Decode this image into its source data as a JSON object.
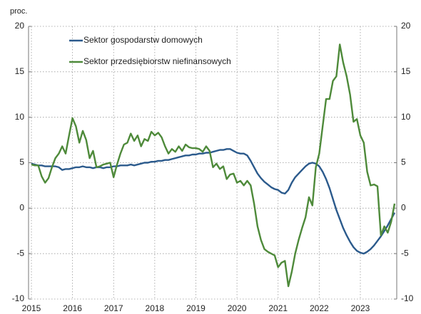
{
  "chart_data": {
    "type": "line",
    "ylabel": "proc.",
    "categories": [
      "2015",
      null,
      null,
      null,
      null,
      null,
      null,
      null,
      null,
      null,
      null,
      null,
      "2016",
      null,
      null,
      null,
      null,
      null,
      null,
      null,
      null,
      null,
      null,
      null,
      "2017",
      null,
      null,
      null,
      null,
      null,
      null,
      null,
      null,
      null,
      null,
      null,
      "2018",
      null,
      null,
      null,
      null,
      null,
      null,
      null,
      null,
      null,
      null,
      null,
      "2019",
      null,
      null,
      null,
      null,
      null,
      null,
      null,
      null,
      null,
      null,
      null,
      "2020",
      null,
      null,
      null,
      null,
      null,
      null,
      null,
      null,
      null,
      null,
      null,
      "2021",
      null,
      null,
      null,
      null,
      null,
      null,
      null,
      null,
      null,
      null,
      null,
      "2022",
      null,
      null,
      null,
      null,
      null,
      null,
      null,
      null,
      null,
      null,
      null,
      "2023",
      null,
      null,
      null,
      null,
      null,
      null,
      null,
      null,
      null,
      null
    ],
    "series": [
      {
        "name": "Sektor gospodarstw domowych",
        "color": "#2b5a8c",
        "values": [
          4.9,
          4.8,
          4.7,
          4.7,
          4.6,
          4.6,
          4.6,
          4.6,
          4.5,
          4.2,
          4.3,
          4.3,
          4.4,
          4.5,
          4.5,
          4.6,
          4.5,
          4.5,
          4.4,
          4.5,
          4.5,
          4.4,
          4.5,
          4.5,
          4.6,
          4.6,
          4.7,
          4.7,
          4.7,
          4.8,
          4.7,
          4.8,
          4.9,
          5.0,
          5.0,
          5.1,
          5.1,
          5.2,
          5.2,
          5.3,
          5.3,
          5.4,
          5.5,
          5.6,
          5.7,
          5.8,
          5.8,
          5.9,
          5.9,
          6.0,
          6.0,
          6.1,
          6.1,
          6.2,
          6.3,
          6.4,
          6.4,
          6.5,
          6.5,
          6.3,
          6.1,
          6.0,
          6.0,
          5.8,
          5.2,
          4.5,
          3.8,
          3.3,
          2.9,
          2.6,
          2.3,
          2.1,
          2.0,
          1.7,
          1.6,
          2.0,
          2.8,
          3.4,
          3.8,
          4.2,
          4.6,
          4.9,
          5.0,
          4.9,
          4.6,
          4.0,
          3.2,
          2.2,
          1.0,
          -0.2,
          -1.2,
          -2.2,
          -3.0,
          -3.7,
          -4.3,
          -4.7,
          -4.9,
          -5.0,
          -4.8,
          -4.5,
          -4.1,
          -3.6,
          -3.1,
          -2.5,
          -1.9,
          -1.2,
          -0.5
        ]
      },
      {
        "name": "Sektor przedsiębiorstw niefinansowych",
        "color": "#4e8a3a",
        "values": [
          4.8,
          4.7,
          4.7,
          3.5,
          2.8,
          3.3,
          4.5,
          5.5,
          6.0,
          6.8,
          6.0,
          8.0,
          9.9,
          9.0,
          7.2,
          8.5,
          7.5,
          5.5,
          6.3,
          4.5,
          4.6,
          4.8,
          4.9,
          5.0,
          3.4,
          4.8,
          6.0,
          7.0,
          7.2,
          8.2,
          7.4,
          8.0,
          6.8,
          7.6,
          7.4,
          8.4,
          8.0,
          8.3,
          7.8,
          6.8,
          6.0,
          6.5,
          6.2,
          6.8,
          6.3,
          7.0,
          6.7,
          6.6,
          6.6,
          6.5,
          6.2,
          6.8,
          6.3,
          4.5,
          4.9,
          4.3,
          4.6,
          3.2,
          3.7,
          3.8,
          2.8,
          3.0,
          2.5,
          3.0,
          2.5,
          0.5,
          -2.0,
          -3.5,
          -4.5,
          -4.8,
          -5.0,
          -5.2,
          -6.5,
          -6.0,
          -5.8,
          -8.6,
          -7.0,
          -5.0,
          -3.5,
          -2.2,
          -1.0,
          1.2,
          0.3,
          4.5,
          6.0,
          9.0,
          12.0,
          12.0,
          14.0,
          14.5,
          18.0,
          16.0,
          14.5,
          12.5,
          9.5,
          9.8,
          8.0,
          7.2,
          4.0,
          2.5,
          2.6,
          2.4,
          -3.0,
          -2.0,
          -2.7,
          -1.5,
          0.5
        ]
      }
    ],
    "ylim": [
      -10,
      20
    ],
    "yticks": [
      -10,
      -5,
      0,
      5,
      10,
      15,
      20
    ],
    "grid": true
  }
}
